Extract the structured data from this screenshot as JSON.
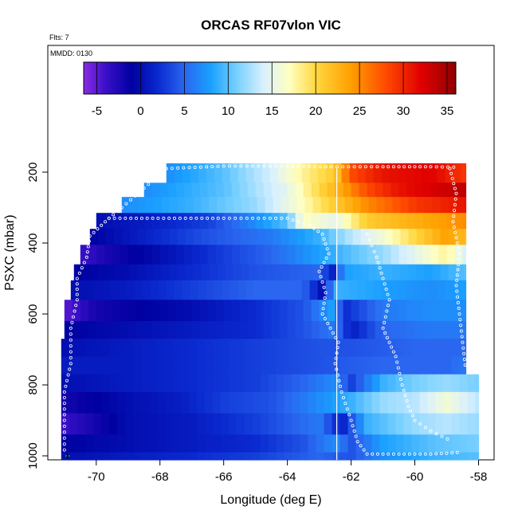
{
  "chart_data": {
    "type": "heatmap",
    "title": "ORCAS RF07vlon VIC",
    "note_flights": "Flts: 7",
    "note_date": "MMDD: 0130",
    "xlabel": "Longitude (deg E)",
    "ylabel": "PSXC (mbar)",
    "xlim": [
      -71.2,
      -57.5
    ],
    "ylim": [
      1010,
      100
    ],
    "x_ticks": [
      -70,
      -68,
      -66,
      -64,
      -62,
      -60,
      -58
    ],
    "x_tick_labels": [
      "-70",
      "-68",
      "-66",
      "-64",
      "-62",
      "-60",
      "-58"
    ],
    "y_ticks": [
      200,
      400,
      600,
      800,
      1000
    ],
    "y_tick_labels": [
      "200",
      "400",
      "600",
      "800",
      "1000"
    ],
    "colorbar": {
      "range": [
        -6.5,
        36
      ],
      "ticks": [
        -5,
        0,
        5,
        10,
        15,
        20,
        25,
        30,
        35
      ],
      "tick_labels": [
        "-5",
        "0",
        "5",
        "10",
        "15",
        "20",
        "25",
        "30",
        "35"
      ],
      "color_stops": [
        {
          "v": -6.5,
          "c": "#8a2be2"
        },
        {
          "v": -4,
          "c": "#3a10c8"
        },
        {
          "v": -1,
          "c": "#0000a0"
        },
        {
          "v": 2,
          "c": "#0a2ad0"
        },
        {
          "v": 5,
          "c": "#2a66f0"
        },
        {
          "v": 8,
          "c": "#1aa0ff"
        },
        {
          "v": 11,
          "c": "#78d0ff"
        },
        {
          "v": 14,
          "c": "#d8f0ff"
        },
        {
          "v": 17,
          "c": "#ffffc0"
        },
        {
          "v": 20,
          "c": "#ffd840"
        },
        {
          "v": 24,
          "c": "#ffa000"
        },
        {
          "v": 28,
          "c": "#ff4a00"
        },
        {
          "v": 32,
          "c": "#e00000"
        },
        {
          "v": 36,
          "c": "#900000"
        }
      ]
    },
    "cell_width_deg": 0.25,
    "bands": [
      {
        "p_top": 175,
        "p_bot": 230,
        "x_start": -67.8,
        "x_end": -58.4,
        "anchors": [
          [
            -67.8,
            7
          ],
          [
            -66,
            10
          ],
          [
            -64.5,
            14
          ],
          [
            -63.5,
            18
          ],
          [
            -62.5,
            21
          ],
          [
            -62,
            28
          ],
          [
            -61,
            31
          ],
          [
            -59.5,
            32
          ],
          [
            -58.4,
            29
          ]
        ]
      },
      {
        "p_top": 230,
        "p_bot": 270,
        "x_start": -68.5,
        "x_end": -58.4,
        "anchors": [
          [
            -68.5,
            7
          ],
          [
            -66,
            10
          ],
          [
            -64,
            15
          ],
          [
            -63,
            20
          ],
          [
            -62.2,
            24
          ],
          [
            -61.5,
            28
          ],
          [
            -60.5,
            31
          ],
          [
            -59,
            33
          ],
          [
            -58.4,
            34
          ]
        ]
      },
      {
        "p_top": 270,
        "p_bot": 315,
        "x_start": -69.2,
        "x_end": -58.4,
        "anchors": [
          [
            -69.2,
            7
          ],
          [
            -67,
            9
          ],
          [
            -65,
            12
          ],
          [
            -63.5,
            17
          ],
          [
            -62.5,
            21
          ],
          [
            -61.5,
            25
          ],
          [
            -60,
            29
          ],
          [
            -58.4,
            31
          ]
        ]
      },
      {
        "p_top": 315,
        "p_bot": 360,
        "x_start": -70.0,
        "x_end": -58.4,
        "anchors": [
          [
            -70.0,
            0
          ],
          [
            -68.5,
            1
          ],
          [
            -66.5,
            3
          ],
          [
            -65,
            7
          ],
          [
            -64,
            10
          ],
          [
            -63.5,
            17
          ],
          [
            -62.5,
            15
          ],
          [
            -61.5,
            21
          ],
          [
            -60,
            23
          ],
          [
            -58.4,
            25
          ]
        ]
      },
      {
        "p_top": 360,
        "p_bot": 405,
        "x_start": -70.2,
        "x_end": -58.4,
        "anchors": [
          [
            -70.2,
            -1
          ],
          [
            -68,
            2
          ],
          [
            -66.5,
            4
          ],
          [
            -64.5,
            6
          ],
          [
            -63,
            9
          ],
          [
            -62,
            13
          ],
          [
            -61,
            16
          ],
          [
            -60,
            20
          ],
          [
            -59,
            24
          ],
          [
            -58.4,
            22
          ]
        ]
      },
      {
        "p_top": 405,
        "p_bot": 460,
        "x_start": -70.5,
        "x_end": -58.4,
        "anchors": [
          [
            -70.5,
            -4
          ],
          [
            -69.5,
            -2
          ],
          [
            -68,
            0
          ],
          [
            -66,
            3
          ],
          [
            -64.5,
            5
          ],
          [
            -63,
            8
          ],
          [
            -62,
            10
          ],
          [
            -61,
            12
          ],
          [
            -60,
            15
          ],
          [
            -59,
            18
          ],
          [
            -58.4,
            14
          ]
        ]
      },
      {
        "p_top": 460,
        "p_bot": 505,
        "x_start": -70.7,
        "x_end": -58.4,
        "anchors": [
          [
            -70.7,
            -1
          ],
          [
            -69,
            0
          ],
          [
            -67,
            2
          ],
          [
            -65,
            4
          ],
          [
            -63,
            5
          ],
          [
            -62.6,
            1
          ],
          [
            -62.2,
            8
          ],
          [
            -61,
            9
          ],
          [
            -59.5,
            8
          ],
          [
            -58.4,
            10
          ]
        ]
      },
      {
        "p_top": 505,
        "p_bot": 560,
        "x_start": -70.8,
        "x_end": -58.4,
        "anchors": [
          [
            -70.8,
            0
          ],
          [
            -69,
            1
          ],
          [
            -67,
            3
          ],
          [
            -65,
            5
          ],
          [
            -63.5,
            5
          ],
          [
            -62.9,
            0
          ],
          [
            -62.5,
            9
          ],
          [
            -61,
            8
          ],
          [
            -59.5,
            7
          ],
          [
            -58.4,
            8
          ]
        ]
      },
      {
        "p_top": 560,
        "p_bot": 620,
        "x_start": -71.0,
        "x_end": -58.4,
        "anchors": [
          [
            -71.0,
            -5
          ],
          [
            -70,
            -2
          ],
          [
            -68.5,
            -1
          ],
          [
            -67,
            0
          ],
          [
            -65,
            2
          ],
          [
            -63.5,
            4
          ],
          [
            -62.6,
            8
          ],
          [
            -62.2,
            2
          ],
          [
            -61,
            6
          ],
          [
            -59.5,
            7
          ],
          [
            -58.4,
            7
          ]
        ]
      },
      {
        "p_top": 620,
        "p_bot": 670,
        "x_start": -71.0,
        "x_end": -58.4,
        "anchors": [
          [
            -71.0,
            -1
          ],
          [
            -69,
            0
          ],
          [
            -67,
            1
          ],
          [
            -65,
            2
          ],
          [
            -63.5,
            4
          ],
          [
            -62.5,
            6
          ],
          [
            -62,
            1
          ],
          [
            -61,
            5
          ],
          [
            -59.5,
            6
          ],
          [
            -58.4,
            6
          ]
        ]
      },
      {
        "p_top": 670,
        "p_bot": 720,
        "x_start": -71.1,
        "x_end": -58.4,
        "anchors": [
          [
            -71.1,
            0
          ],
          [
            -69,
            1
          ],
          [
            -67,
            2
          ],
          [
            -65,
            3
          ],
          [
            -63,
            4
          ],
          [
            -62,
            4
          ],
          [
            -60,
            5
          ],
          [
            -58.4,
            5
          ]
        ]
      },
      {
        "p_top": 720,
        "p_bot": 770,
        "x_start": -71.1,
        "x_end": -58.4,
        "anchors": [
          [
            -71.1,
            1
          ],
          [
            -69,
            1
          ],
          [
            -67,
            2
          ],
          [
            -65,
            3
          ],
          [
            -63,
            4
          ],
          [
            -61,
            5
          ],
          [
            -59,
            5
          ],
          [
            -58.4,
            6
          ]
        ]
      },
      {
        "p_top": 770,
        "p_bot": 820,
        "x_start": -71.1,
        "x_end": -58.0,
        "anchors": [
          [
            -71.1,
            0
          ],
          [
            -69,
            1
          ],
          [
            -67,
            2
          ],
          [
            -65,
            3
          ],
          [
            -63.5,
            5
          ],
          [
            -62.5,
            7
          ],
          [
            -62,
            3
          ],
          [
            -61,
            9
          ],
          [
            -60,
            11
          ],
          [
            -59,
            12
          ],
          [
            -58.0,
            11
          ]
        ]
      },
      {
        "p_top": 820,
        "p_bot": 880,
        "x_start": -71.1,
        "x_end": -58.0,
        "anchors": [
          [
            -71.1,
            -2
          ],
          [
            -70,
            -1
          ],
          [
            -69,
            0
          ],
          [
            -67.5,
            1
          ],
          [
            -66,
            3
          ],
          [
            -64.5,
            4
          ],
          [
            -63,
            7
          ],
          [
            -62,
            9
          ],
          [
            -61,
            12
          ],
          [
            -60,
            13
          ],
          [
            -59,
            16
          ],
          [
            -58.0,
            13
          ]
        ]
      },
      {
        "p_top": 880,
        "p_bot": 940,
        "x_start": -71.1,
        "x_end": -58.0,
        "anchors": [
          [
            -71.1,
            -4
          ],
          [
            -70,
            -2
          ],
          [
            -69,
            0
          ],
          [
            -67,
            1
          ],
          [
            -65,
            3
          ],
          [
            -63,
            6
          ],
          [
            -62.3,
            1
          ],
          [
            -61.5,
            9
          ],
          [
            -60,
            12
          ],
          [
            -59,
            13
          ],
          [
            -58.0,
            12
          ]
        ]
      },
      {
        "p_top": 940,
        "p_bot": 990,
        "x_start": -71.1,
        "x_end": -58.0,
        "anchors": [
          [
            -71.1,
            -1
          ],
          [
            -69,
            0
          ],
          [
            -67,
            1
          ],
          [
            -65,
            2
          ],
          [
            -63.5,
            4
          ],
          [
            -62.5,
            7
          ],
          [
            -62,
            4
          ],
          [
            -61,
            8
          ],
          [
            -59.5,
            10
          ],
          [
            -58.0,
            11
          ]
        ]
      },
      {
        "p_top": 990,
        "p_bot": 1015,
        "x_start": -71.1,
        "x_end": -58.0,
        "anchors": [
          [
            -71.1,
            0
          ],
          [
            -69,
            1
          ],
          [
            -67,
            2
          ],
          [
            -65,
            3
          ],
          [
            -63,
            5
          ],
          [
            -62,
            4
          ],
          [
            -61,
            7
          ],
          [
            -59.5,
            9
          ],
          [
            -58.0,
            10
          ]
        ]
      }
    ],
    "flight_track_paths": [
      [
        [
          -67.8,
          190
        ],
        [
          -66,
          183
        ],
        [
          -64,
          183
        ],
        [
          -62.8,
          185
        ],
        [
          -61,
          185
        ],
        [
          -59.5,
          185
        ],
        [
          -58.6,
          186
        ]
      ],
      [
        [
          -67.8,
          190
        ],
        [
          -68.5,
          245
        ],
        [
          -69.2,
          300
        ],
        [
          -69.6,
          330
        ],
        [
          -66,
          330
        ],
        [
          -64,
          330
        ],
        [
          -63.3,
          350
        ],
        [
          -62.9,
          375
        ]
      ],
      [
        [
          -69.6,
          330
        ],
        [
          -70.2,
          380
        ],
        [
          -70.3,
          440
        ],
        [
          -70.6,
          500
        ],
        [
          -70.6,
          560
        ],
        [
          -70.8,
          640
        ],
        [
          -70.8,
          740
        ],
        [
          -71.0,
          820
        ],
        [
          -71.0,
          900
        ],
        [
          -71.0,
          1000
        ]
      ],
      [
        [
          -62.9,
          375
        ],
        [
          -62.7,
          430
        ],
        [
          -63.0,
          480
        ],
        [
          -62.8,
          540
        ],
        [
          -62.9,
          600
        ],
        [
          -62.4,
          680
        ],
        [
          -62.5,
          740
        ],
        [
          -62.3,
          820
        ],
        [
          -62.0,
          900
        ],
        [
          -61.8,
          960
        ],
        [
          -61.5,
          995
        ],
        [
          -60.5,
          995
        ],
        [
          -59.5,
          995
        ],
        [
          -58.5,
          990
        ]
      ],
      [
        [
          -61.5,
          375
        ],
        [
          -61.2,
          440
        ],
        [
          -61.0,
          500
        ],
        [
          -60.8,
          560
        ],
        [
          -61.0,
          640
        ],
        [
          -60.6,
          720
        ],
        [
          -60.4,
          800
        ],
        [
          -60.2,
          860
        ],
        [
          -60.0,
          900
        ],
        [
          -59.5,
          930
        ],
        [
          -58.8,
          960
        ]
      ],
      [
        [
          -58.9,
          190
        ],
        [
          -58.7,
          260
        ],
        [
          -58.8,
          340
        ],
        [
          -58.6,
          430
        ],
        [
          -58.7,
          520
        ],
        [
          -58.6,
          600
        ],
        [
          -58.5,
          680
        ],
        [
          -58.4,
          760
        ]
      ]
    ],
    "vertical_line_lon": -62.45,
    "start_marker": [
      -70.9,
      1000
    ]
  }
}
